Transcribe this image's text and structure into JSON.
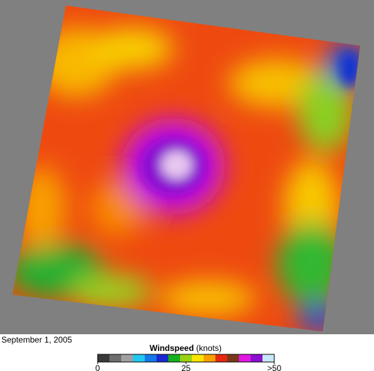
{
  "caption": "September 1, 2005",
  "legend": {
    "title": "Windspeed",
    "unit": "(knots)",
    "range": [
      0,
      50
    ],
    "ticks": [
      {
        "value": 0,
        "label": "0"
      },
      {
        "value": 25,
        "label": "25"
      },
      {
        "value": 50,
        "label": ">50"
      }
    ],
    "colors": [
      "#3a3a3a",
      "#6e6e6e",
      "#a0a0a0",
      "#20c8f0",
      "#1478e8",
      "#1a2ad0",
      "#14b020",
      "#9ad214",
      "#f8e400",
      "#f8a000",
      "#e82810",
      "#7a3818",
      "#e018e0",
      "#8a10d0",
      "#c8e8ff"
    ]
  }
}
